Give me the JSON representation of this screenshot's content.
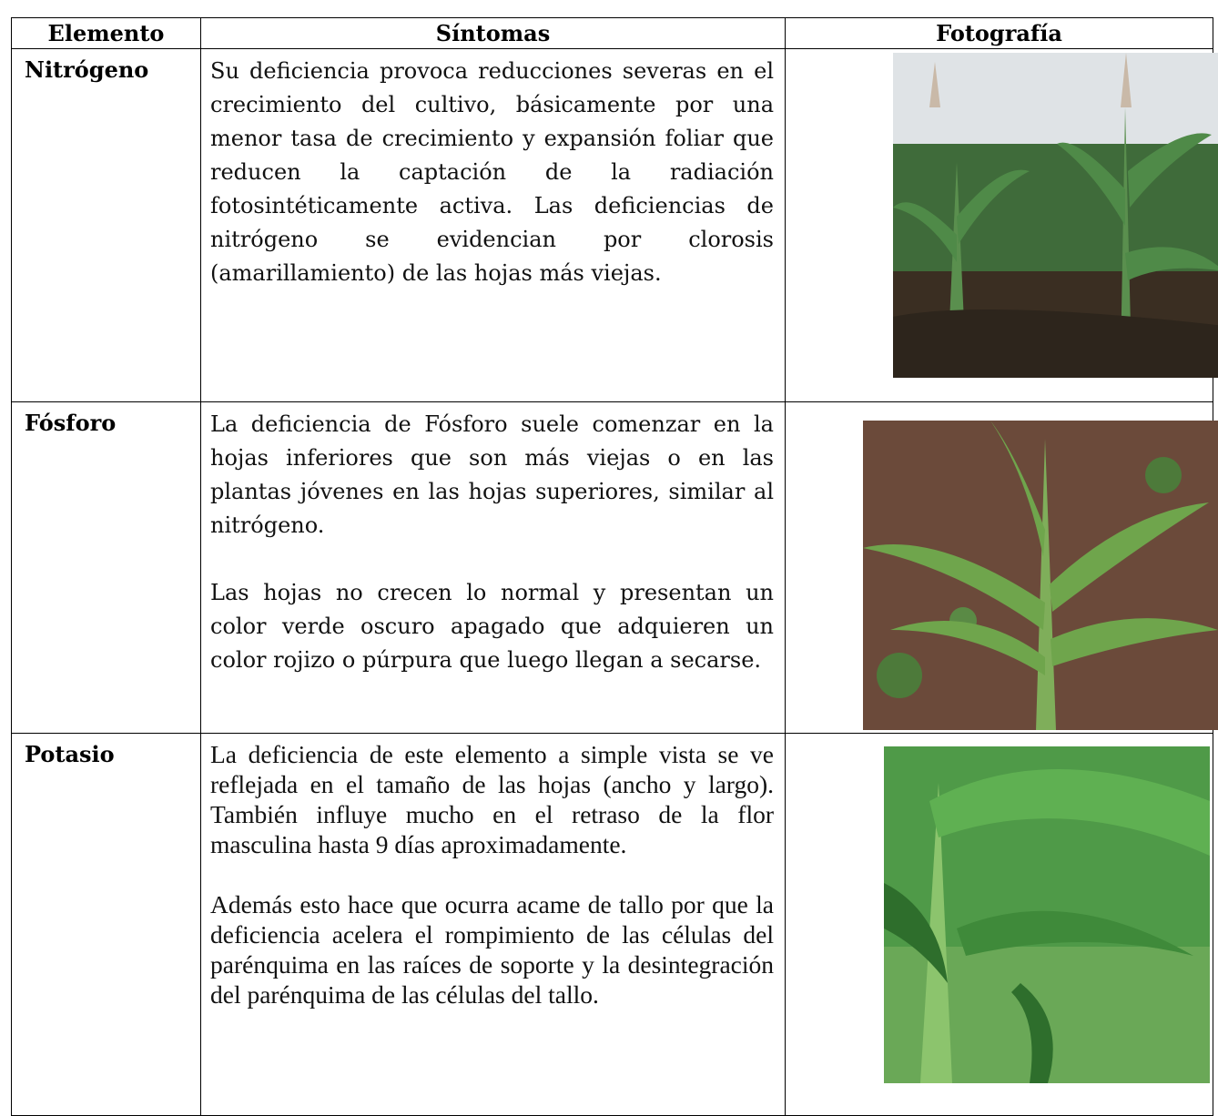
{
  "table": {
    "header": [
      "Elemento",
      "Síntomas",
      "Fotografía"
    ],
    "rows": [
      {
        "element": "Nitrógeno",
        "symptoms": [
          "Su deficiencia provoca reducciones severas en el crecimiento del cultivo, básicamente por una menor tasa de crecimiento y expansión foliar que reducen la captación de la radiación fotosintéticamente activa. Las deficiencias de nitrógeno se evidencian por clorosis (amarillamiento) de las hojas más viejas."
        ]
      },
      {
        "element": "Fósforo",
        "symptoms": [
          "La deficiencia de Fósforo suele comenzar en la hojas inferiores que son más viejas o en las plantas jóvenes en las hojas superiores, similar al nitrógeno.",
          "Las hojas no crecen lo normal y presentan un color verde oscuro apagado que adquieren un color rojizo o púrpura que luego llegan a secarse."
        ]
      },
      {
        "element": "Potasio",
        "symptoms": [
          "La deficiencia de este elemento a simple vista se ve reflejada en el tamaño de las hojas (ancho y largo). También influye mucho en el retraso de la flor masculina hasta 9 días aproximadamente.",
          "Además esto hace que ocurra acame de tallo por que la deficiencia acelera el rompimiento de las células del parénquima en las raíces de soporte y la desintegración del parénquima de las células del tallo."
        ]
      }
    ]
  }
}
